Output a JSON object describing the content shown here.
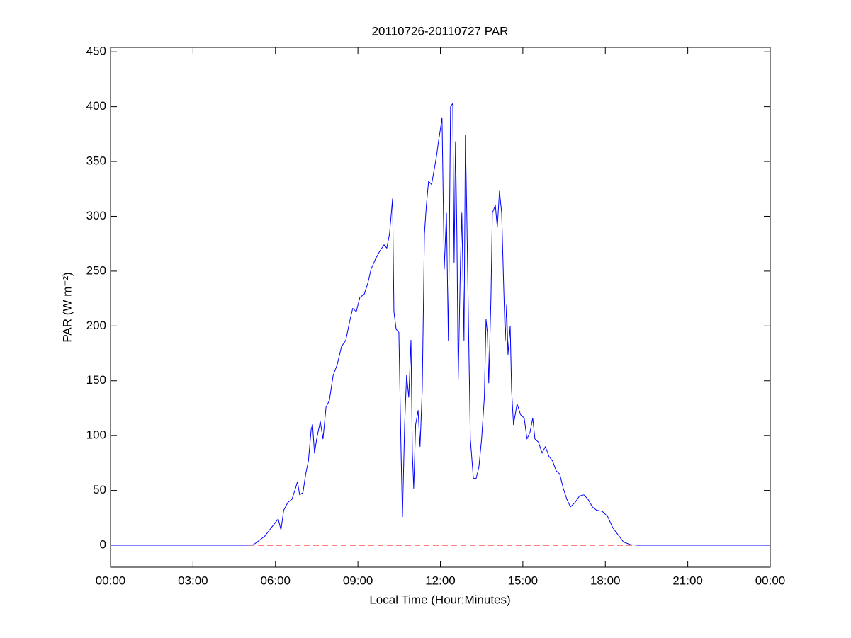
{
  "chart_data": {
    "type": "line",
    "title": "20110726-20110727 PAR",
    "xlabel": "Local Time (Hour:Minutes)",
    "ylabel": "PAR (W m⁻²)",
    "color": "#0000ff",
    "x": [
      0,
      3,
      5.0,
      5.2,
      5.6,
      6.1,
      6.2,
      6.3,
      6.45,
      6.6,
      6.73,
      6.8,
      6.88,
      7.0,
      7.1,
      7.2,
      7.3,
      7.35,
      7.42,
      7.5,
      7.63,
      7.73,
      7.84,
      7.96,
      8.1,
      8.25,
      8.4,
      8.56,
      8.69,
      8.81,
      8.94,
      9.07,
      9.23,
      9.36,
      9.48,
      9.64,
      9.79,
      9.95,
      10.05,
      10.15,
      10.26,
      10.31,
      10.39,
      10.49,
      10.57,
      10.62,
      10.7,
      10.77,
      10.85,
      10.93,
      10.98,
      11.03,
      11.1,
      11.19,
      11.26,
      11.34,
      11.42,
      11.49,
      11.57,
      11.68,
      11.75,
      11.86,
      11.93,
      12.01,
      12.06,
      12.14,
      12.22,
      12.29,
      12.37,
      12.45,
      12.5,
      12.55,
      12.6,
      12.65,
      12.73,
      12.78,
      12.86,
      12.91,
      12.96,
      13.04,
      13.09,
      13.2,
      13.3,
      13.4,
      13.5,
      13.6,
      13.66,
      13.71,
      13.76,
      13.84,
      13.89,
      14.0,
      14.07,
      14.15,
      14.23,
      14.3,
      14.36,
      14.41,
      14.46,
      14.54,
      14.59,
      14.66,
      14.79,
      14.92,
      15.05,
      15.15,
      15.26,
      15.36,
      15.44,
      15.57,
      15.7,
      15.82,
      15.95,
      16.08,
      16.21,
      16.34,
      16.47,
      16.6,
      16.73,
      16.9,
      17.06,
      17.22,
      17.37,
      17.53,
      17.68,
      17.89,
      18.09,
      18.27,
      18.45,
      18.66,
      18.92,
      19.2,
      21,
      24
    ],
    "values": [
      0,
      0,
      0,
      0.5,
      8,
      24,
      14,
      32,
      39,
      42,
      52,
      58,
      46,
      48,
      65,
      77,
      106,
      110,
      84,
      97,
      113,
      97,
      126,
      132,
      155,
      165,
      181,
      187,
      203,
      216,
      213,
      226,
      229,
      239,
      252,
      261,
      268,
      274,
      271,
      284,
      316,
      213,
      197,
      194,
      84,
      26,
      110,
      155,
      135,
      187,
      84,
      52,
      110,
      123,
      90,
      142,
      284,
      310,
      332,
      329,
      339,
      355,
      368,
      381,
      390,
      252,
      303,
      187,
      400,
      403,
      258,
      368,
      284,
      152,
      258,
      303,
      187,
      374,
      303,
      174,
      97,
      61,
      61,
      71,
      97,
      135,
      206,
      194,
      148,
      226,
      303,
      310,
      290,
      323,
      303,
      239,
      187,
      219,
      174,
      200,
      142,
      110,
      129,
      119,
      116,
      97,
      103,
      116,
      97,
      94,
      84,
      90,
      81,
      77,
      68,
      65,
      52,
      42,
      35,
      39,
      45,
      46,
      42,
      35,
      32,
      31,
      26,
      16,
      10,
      3,
      0.5,
      0,
      0,
      0
    ],
    "hline": {
      "value": 0,
      "color": "#ff0000",
      "style": "dashed"
    },
    "xlim": [
      0,
      24
    ],
    "xticks": [
      {
        "value": 0,
        "label": "00:00"
      },
      {
        "value": 3,
        "label": "03:00"
      },
      {
        "value": 6,
        "label": "06:00"
      },
      {
        "value": 9,
        "label": "09:00"
      },
      {
        "value": 12,
        "label": "12:00"
      },
      {
        "value": 15,
        "label": "15:00"
      },
      {
        "value": 18,
        "label": "18:00"
      },
      {
        "value": 21,
        "label": "21:00"
      },
      {
        "value": 24,
        "label": "00:00"
      }
    ],
    "ylim": [
      -20,
      454
    ],
    "yticks": [
      0,
      50,
      100,
      150,
      200,
      250,
      300,
      350,
      400,
      450
    ],
    "grid": false
  }
}
